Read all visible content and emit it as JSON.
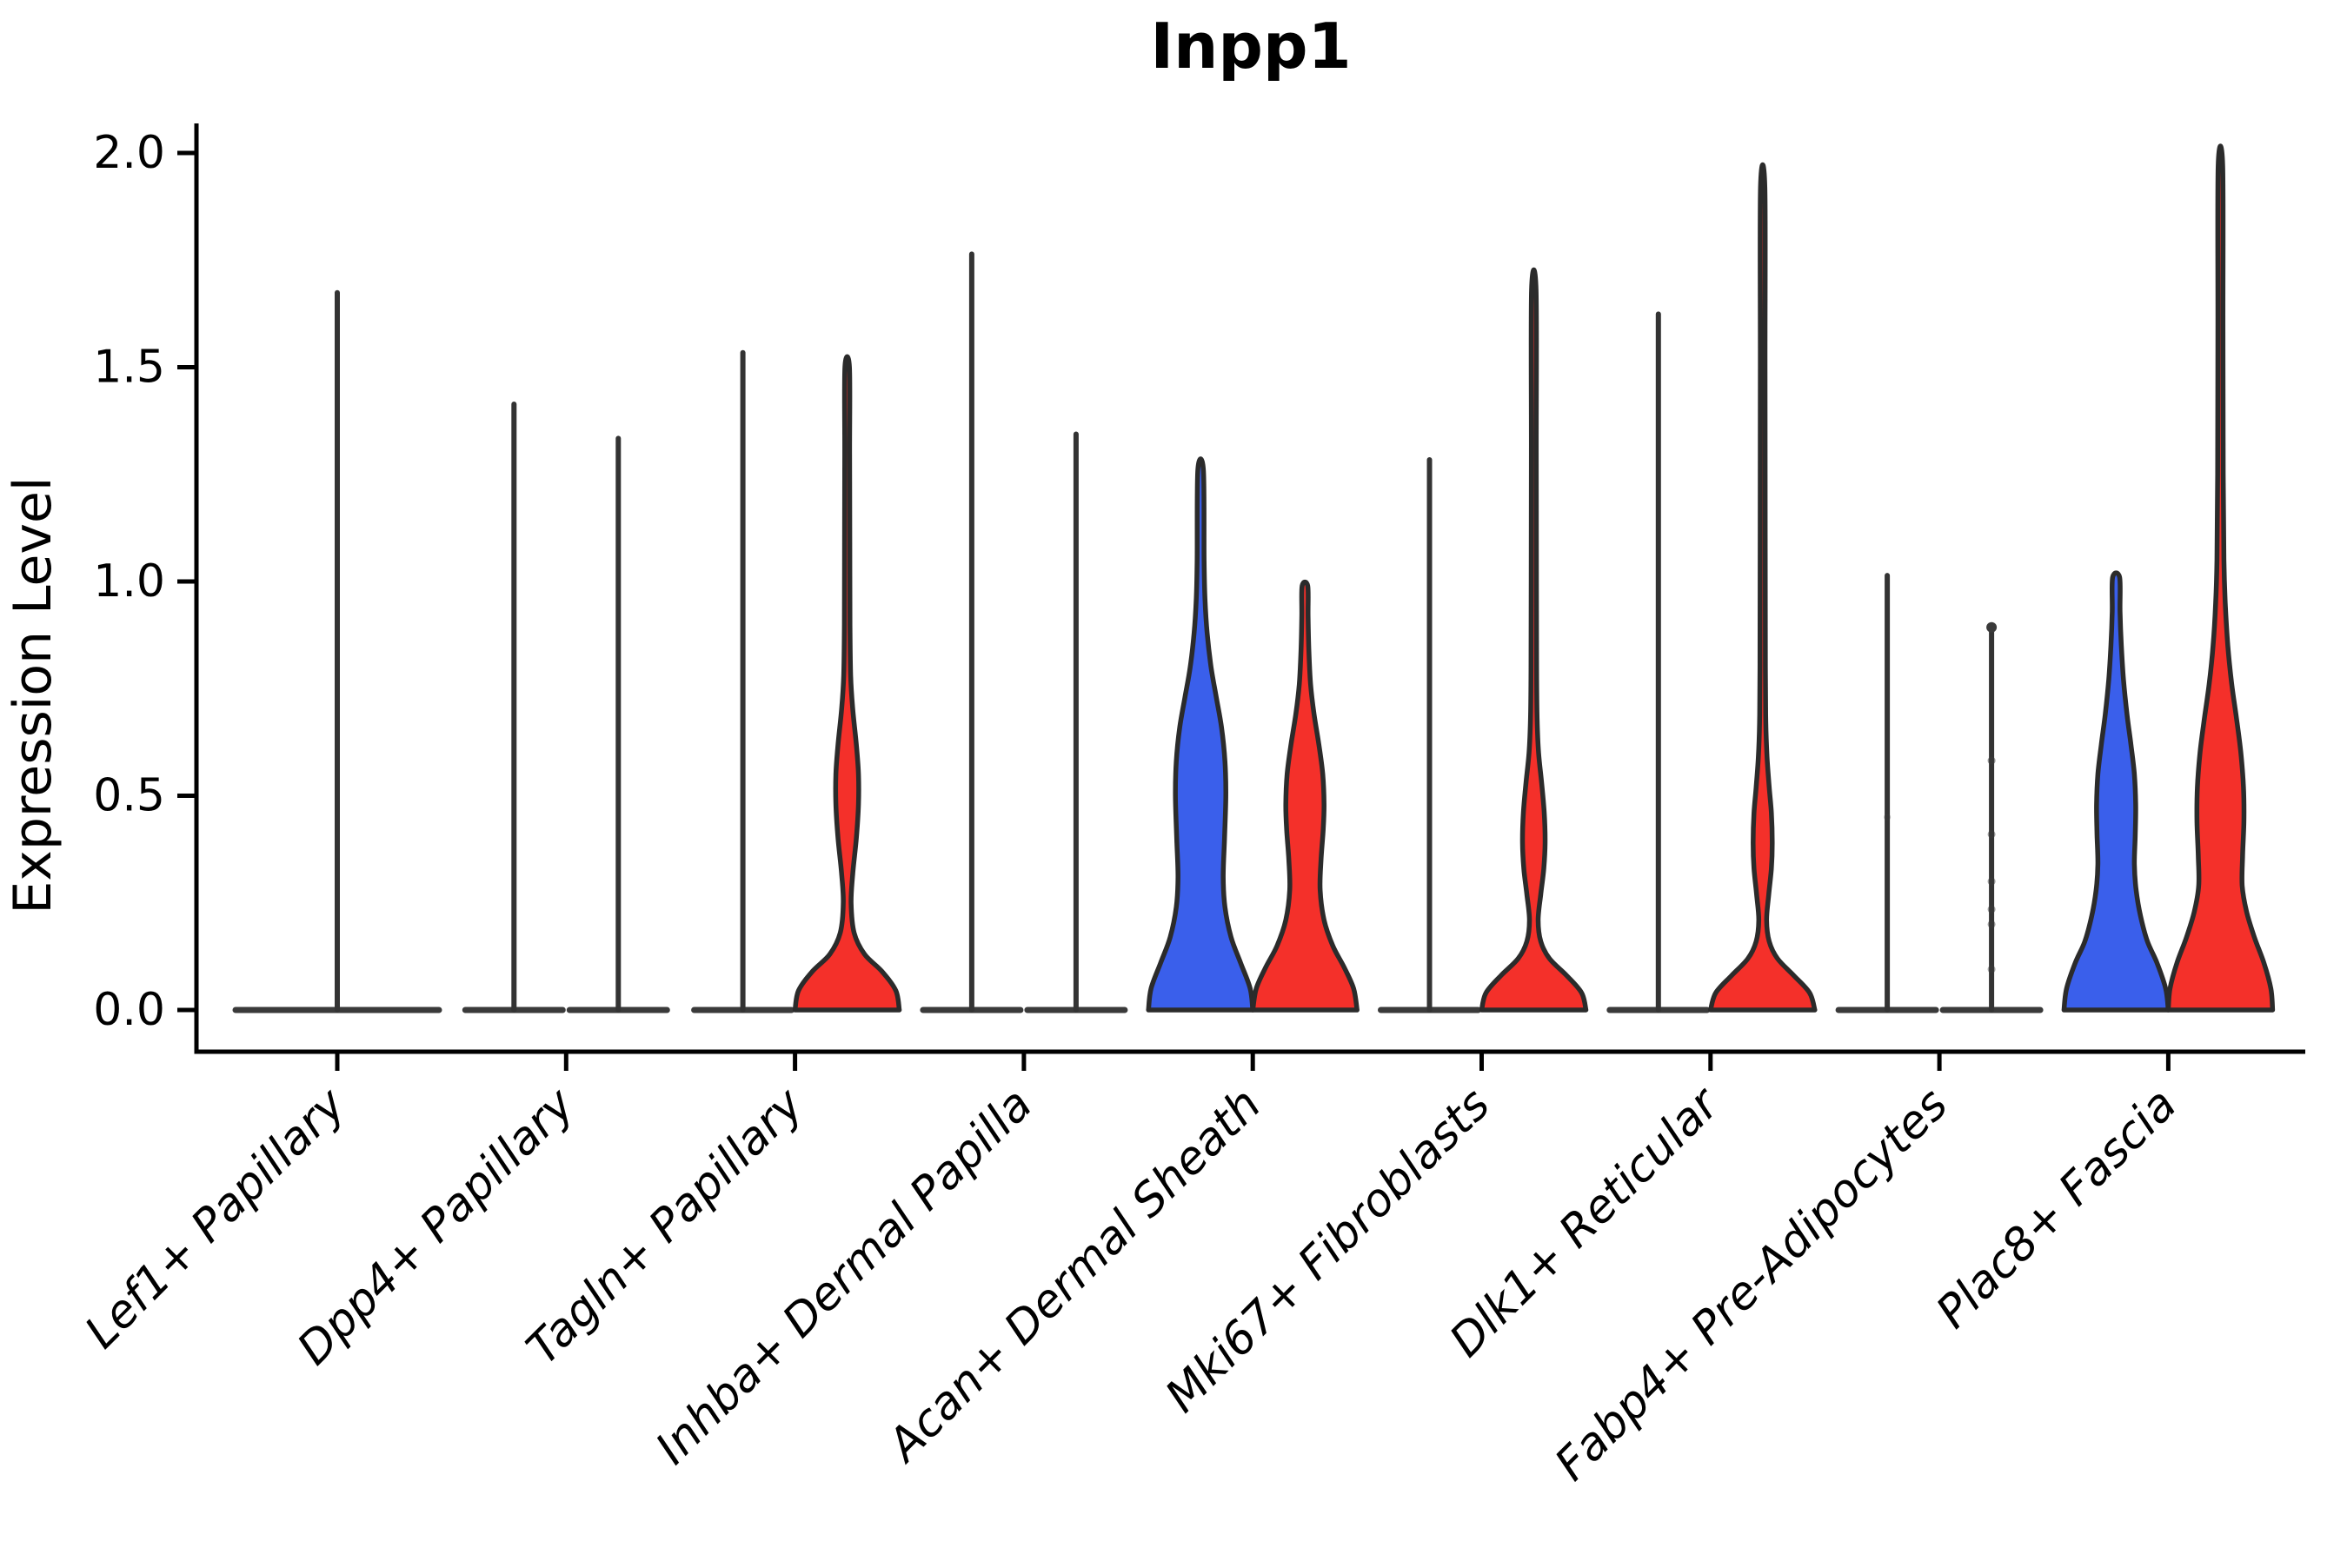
{
  "title": "Inpp1",
  "ylabel": "Expression Level",
  "colors": {
    "blue": "#3a5feb",
    "red": "#f4302a",
    "outline": "#2b2b2b",
    "flat": "#3a3a3a",
    "spike": "#333333",
    "axis": "#000000",
    "dot": "#3a3a3a"
  },
  "chart_data": {
    "type": "violin",
    "title": "Inpp1",
    "xlabel": "",
    "ylabel": "Expression Level",
    "ylim": [
      0,
      2.07
    ],
    "yticks": [
      "0.0",
      "0.5",
      "1.0",
      "1.5",
      "2.0"
    ],
    "ytick_values": [
      0,
      0.5,
      1,
      1.5,
      2
    ],
    "grid": false,
    "legend": "none",
    "categories": [
      "Lef1+ Papillary",
      "Dpp4+ Papillary",
      "Tagln+ Papillary",
      "Inhba+ Dermal Papilla",
      "Acan+ Dermal Sheath",
      "Mki67+ Fibroblasts",
      "Dlk1+ Reticular",
      "Fabp4+ Pre-Adipocytes",
      "Plac8+ Fascia"
    ],
    "groups": [
      {
        "category": "Lef1+ Papillary",
        "violins": [
          {
            "side": "center",
            "fill": "none",
            "shape": "flat",
            "max": 1.68,
            "halfwidth": 121
          }
        ]
      },
      {
        "category": "Dpp4+ Papillary",
        "violins": [
          {
            "side": "left",
            "fill": "none",
            "shape": "flat",
            "max": 1.42
          },
          {
            "side": "right",
            "fill": "none",
            "shape": "flat",
            "max": 1.34
          }
        ]
      },
      {
        "category": "Tagln+ Papillary",
        "violins": [
          {
            "side": "left",
            "fill": "none",
            "shape": "flat",
            "max": 1.54
          },
          {
            "side": "right",
            "fill": "red",
            "shape": "curve",
            "max": 1.5,
            "profile": [
              [
                0,
                60
              ],
              [
                0.045,
                56
              ],
              [
                0.09,
                40
              ],
              [
                0.13,
                20
              ],
              [
                0.18,
                8
              ],
              [
                0.25,
                4.5
              ],
              [
                0.32,
                6.5
              ],
              [
                0.4,
                10.5
              ],
              [
                0.48,
                13
              ],
              [
                0.55,
                13
              ],
              [
                0.62,
                10.5
              ],
              [
                0.7,
                6.5
              ],
              [
                0.78,
                4
              ],
              [
                0.9,
                3.2
              ],
              [
                1.1,
                3
              ],
              [
                1.3,
                2.8
              ],
              [
                1.5,
                2.6
              ]
            ]
          }
        ]
      },
      {
        "category": "Inhba+ Dermal Papilla",
        "violins": [
          {
            "side": "left",
            "fill": "none",
            "shape": "flat",
            "max": 1.77
          },
          {
            "side": "right",
            "fill": "none",
            "shape": "flat",
            "max": 1.35
          }
        ]
      },
      {
        "category": "Acan+ Dermal Sheath",
        "violins": [
          {
            "side": "left",
            "fill": "blue",
            "shape": "curve",
            "max": 1.26,
            "profile": [
              [
                0,
                60
              ],
              [
                0.05,
                57
              ],
              [
                0.11,
                46
              ],
              [
                0.17,
                35
              ],
              [
                0.24,
                28
              ],
              [
                0.31,
                26
              ],
              [
                0.4,
                27.5
              ],
              [
                0.5,
                29
              ],
              [
                0.58,
                28
              ],
              [
                0.66,
                24
              ],
              [
                0.73,
                18
              ],
              [
                0.8,
                12
              ],
              [
                0.88,
                7.5
              ],
              [
                0.96,
                5
              ],
              [
                1.05,
                4
              ],
              [
                1.26,
                3.2
              ]
            ]
          },
          {
            "side": "right",
            "fill": "red",
            "shape": "curve",
            "max": 0.99,
            "profile": [
              [
                0,
                60
              ],
              [
                0.05,
                56
              ],
              [
                0.1,
                45
              ],
              [
                0.15,
                32
              ],
              [
                0.21,
                22
              ],
              [
                0.28,
                17.5
              ],
              [
                0.35,
                18.5
              ],
              [
                0.42,
                21
              ],
              [
                0.48,
                22
              ],
              [
                0.55,
                20.5
              ],
              [
                0.62,
                16
              ],
              [
                0.69,
                10.5
              ],
              [
                0.76,
                6.5
              ],
              [
                0.84,
                4.5
              ],
              [
                0.92,
                3.6
              ],
              [
                0.99,
                3.2
              ]
            ]
          }
        ]
      },
      {
        "category": "Mki67+ Fibroblasts",
        "violins": [
          {
            "side": "left",
            "fill": "none",
            "shape": "flat",
            "max": 1.29
          },
          {
            "side": "right",
            "fill": "red",
            "shape": "curve",
            "max": 1.68,
            "profile": [
              [
                0,
                60
              ],
              [
                0.04,
                55
              ],
              [
                0.08,
                38
              ],
              [
                0.12,
                18
              ],
              [
                0.16,
                8
              ],
              [
                0.21,
                5
              ],
              [
                0.27,
                8
              ],
              [
                0.33,
                11.5
              ],
              [
                0.39,
                13
              ],
              [
                0.46,
                12
              ],
              [
                0.53,
                9
              ],
              [
                0.6,
                5.5
              ],
              [
                0.68,
                3.8
              ],
              [
                0.8,
                3.2
              ],
              [
                1.0,
                3
              ],
              [
                1.3,
                2.8
              ],
              [
                1.68,
                2.6
              ]
            ]
          }
        ]
      },
      {
        "category": "Dlk1+ Reticular",
        "violins": [
          {
            "side": "left",
            "fill": "none",
            "shape": "flat",
            "max": 1.63
          },
          {
            "side": "right",
            "fill": "red",
            "shape": "curve",
            "max": 1.92,
            "profile": [
              [
                0,
                60
              ],
              [
                0.04,
                54
              ],
              [
                0.08,
                36
              ],
              [
                0.12,
                17
              ],
              [
                0.16,
                7.5
              ],
              [
                0.21,
                4.5
              ],
              [
                0.27,
                7
              ],
              [
                0.33,
                10
              ],
              [
                0.39,
                11
              ],
              [
                0.46,
                10
              ],
              [
                0.52,
                7.5
              ],
              [
                0.59,
                5
              ],
              [
                0.67,
                3.6
              ],
              [
                0.8,
                3.1
              ],
              [
                1.1,
                2.9
              ],
              [
                1.5,
                2.7
              ],
              [
                1.92,
                2.5
              ]
            ]
          }
        ]
      },
      {
        "category": "Fabp4+ Pre-Adipocytes",
        "violins": [
          {
            "side": "left",
            "fill": "none",
            "shape": "flat",
            "max": 1.02,
            "dots": [
              [
                0.45,
                4,
                0.3
              ]
            ]
          },
          {
            "side": "right",
            "fill": "none",
            "shape": "flat",
            "max": 0.9,
            "dots": [
              [
                0.893,
                6,
                1
              ],
              [
                0.582,
                4.5,
                0.55
              ],
              [
                0.41,
                4.5,
                0.5
              ],
              [
                0.3,
                4.5,
                0.5
              ],
              [
                0.235,
                4.5,
                0.5
              ],
              [
                0.2,
                4.5,
                0.5
              ],
              [
                0.095,
                4.5,
                0.45
              ]
            ]
          }
        ]
      },
      {
        "category": "Plac8+ Fascia",
        "violins": [
          {
            "side": "left",
            "fill": "blue",
            "shape": "curve",
            "max": 1.01,
            "profile": [
              [
                0,
                60
              ],
              [
                0.05,
                57
              ],
              [
                0.11,
                47
              ],
              [
                0.16,
                36
              ],
              [
                0.22,
                28
              ],
              [
                0.28,
                23
              ],
              [
                0.34,
                21
              ],
              [
                0.41,
                22
              ],
              [
                0.48,
                22.5
              ],
              [
                0.55,
                21
              ],
              [
                0.62,
                17
              ],
              [
                0.69,
                12.5
              ],
              [
                0.77,
                8.5
              ],
              [
                0.85,
                6
              ],
              [
                0.93,
                4.5
              ],
              [
                1.01,
                4
              ]
            ]
          },
          {
            "side": "right",
            "fill": "red",
            "shape": "curve",
            "max": 1.97,
            "profile": [
              [
                0,
                60
              ],
              [
                0.05,
                58
              ],
              [
                0.11,
                50
              ],
              [
                0.17,
                39
              ],
              [
                0.23,
                30
              ],
              [
                0.29,
                25
              ],
              [
                0.36,
                25.5
              ],
              [
                0.44,
                27
              ],
              [
                0.52,
                26.5
              ],
              [
                0.6,
                23.5
              ],
              [
                0.68,
                18.5
              ],
              [
                0.76,
                13
              ],
              [
                0.85,
                8.5
              ],
              [
                0.95,
                5.5
              ],
              [
                1.05,
                4
              ],
              [
                1.25,
                3.2
              ],
              [
                1.6,
                2.9
              ],
              [
                1.97,
                2.6
              ]
            ]
          }
        ]
      }
    ]
  }
}
